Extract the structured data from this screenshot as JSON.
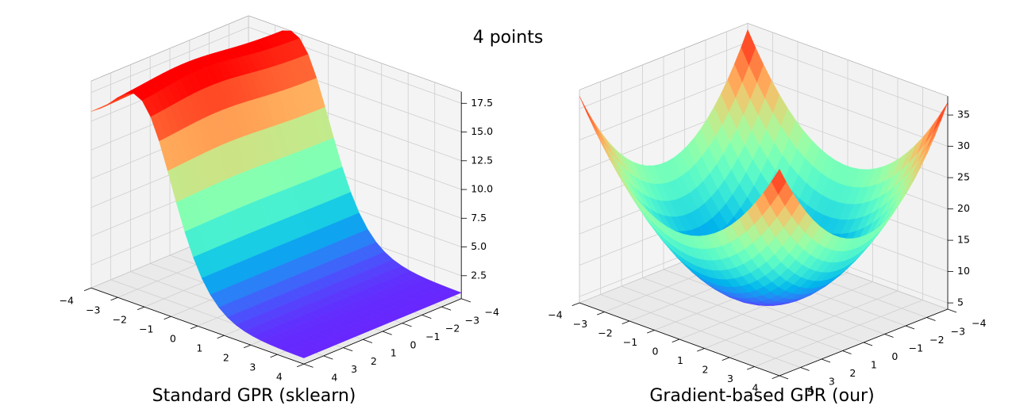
{
  "figure": {
    "suptitle": "4 points"
  },
  "chart_data": [
    {
      "type": "surface",
      "title": "Standard GPR (sklearn)",
      "xlabel": "",
      "ylabel": "",
      "zlabel": "",
      "xlim": [
        -4,
        4
      ],
      "ylim": [
        -4,
        4
      ],
      "zlim": [
        0.5,
        18.5
      ],
      "x_ticks": [
        -4,
        -3,
        -2,
        -1,
        0,
        1,
        2,
        3,
        4
      ],
      "y_ticks": [
        -4,
        -3,
        -2,
        -1,
        0,
        1,
        2,
        3,
        4
      ],
      "z_ticks": [
        2.5,
        5.0,
        7.5,
        10.0,
        12.5,
        15.0,
        17.5
      ],
      "z_tick_labels": [
        "2.5",
        "5.0",
        "7.5",
        "10.0",
        "12.5",
        "15.0",
        "17.5"
      ],
      "colormap": "rainbow",
      "grid": true,
      "grid_points": 25,
      "surface_model": "sigmoid ridge: high (~17.5) along x-4..0 side peaking near x=-2, descending to ~1 toward x=4"
    },
    {
      "type": "surface",
      "title": "Gradient-based GPR (our)",
      "xlabel": "",
      "ylabel": "",
      "zlabel": "",
      "xlim": [
        -4,
        4
      ],
      "ylim": [
        -4,
        4
      ],
      "zlim": [
        4,
        38
      ],
      "x_ticks": [
        -4,
        -3,
        -2,
        -1,
        0,
        1,
        2,
        3,
        4
      ],
      "y_ticks": [
        -4,
        -3,
        -2,
        -1,
        0,
        1,
        2,
        3,
        4
      ],
      "z_ticks": [
        5,
        10,
        15,
        20,
        25,
        30,
        35
      ],
      "z_tick_labels": [
        "5",
        "10",
        "15",
        "20",
        "25",
        "30",
        "35"
      ],
      "colormap": "rainbow",
      "grid": true,
      "grid_points": 25,
      "surface_model": "bowl: minimum ~5 at center, corners rise to ~37"
    }
  ]
}
